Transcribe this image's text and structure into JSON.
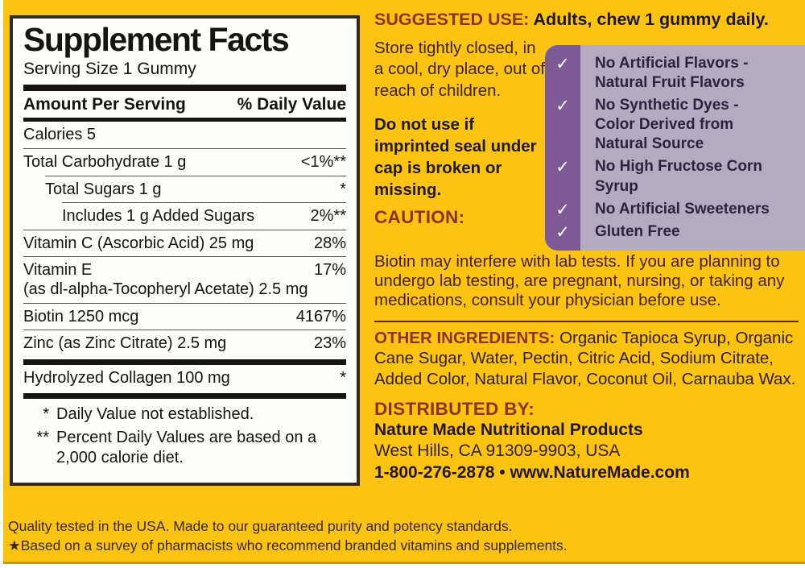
{
  "colors": {
    "background_yellow": "#fcc412",
    "heading_maroon": "#8a3520",
    "purple_strip": "#7d5a96",
    "purple_panel": "#b4aac1",
    "checklist_text": "#2b2340"
  },
  "facts": {
    "title": "Supplement Facts",
    "serving_size": "Serving Size 1 Gummy",
    "amount_header": "Amount Per Serving",
    "dv_header": "% Daily Value",
    "rows": [
      {
        "name": "Calories 5",
        "dv": ""
      },
      {
        "name": "Total Carbohydrate 1 g",
        "dv": "<1%**"
      },
      {
        "name": "Total Sugars 1 g",
        "dv": "*"
      },
      {
        "name": "Includes 1 g Added Sugars",
        "dv": "2%**"
      },
      {
        "name": "Vitamin C (Ascorbic Acid) 25 mg",
        "dv": "28%"
      },
      {
        "name": "Vitamin E",
        "name_line2": "(as dl-alpha-Tocopheryl Acetate) 2.5 mg",
        "dv": "17%"
      },
      {
        "name": "Biotin 1250 mcg",
        "dv": "4167%"
      },
      {
        "name": "Zinc (as Zinc Citrate) 2.5 mg",
        "dv": "23%"
      },
      {
        "name": "Hydrolyzed Collagen 100 mg",
        "dv": "*"
      }
    ],
    "footnotes": [
      {
        "marker": "*",
        "text": "Daily Value not established."
      },
      {
        "marker": "**",
        "text": "Percent Daily Values are based on a 2,000 calorie diet."
      }
    ]
  },
  "right": {
    "suggested_use_label": "SUGGESTED USE:",
    "suggested_use_text": "Adults, chew 1 gummy daily.",
    "storage_text": "Store tightly closed, in a cool, dry place, out of reach of children.",
    "seal_text": "Do not use if imprinted seal under cap is broken or missing.",
    "checkmark": "✓",
    "checklist": [
      {
        "lines": [
          "No Artificial Flavors -",
          "Natural Fruit Flavors"
        ]
      },
      {
        "lines": [
          "No Synthetic Dyes -",
          "Color Derived from",
          "Natural Source"
        ]
      },
      {
        "lines": [
          "No High Fructose Corn Syrup"
        ]
      },
      {
        "lines": [
          "No Artificial Sweeteners"
        ]
      },
      {
        "lines": [
          "Gluten Free"
        ]
      }
    ],
    "caution_label": "CAUTION:",
    "caution_text": "Biotin may interfere with lab tests. If you are planning to undergo lab testing, are pregnant, nursing, or taking any medications, consult your physician before use.",
    "other_ingredients_label": "OTHER INGREDIENTS:",
    "other_ingredients_text": " Organic Tapioca Syrup, Organic Cane Sugar, Water, Pectin, Citric Acid, Sodium Citrate, Added Color, Natural Flavor, Coconut Oil, Carnauba Wax.",
    "distributed_by_label": "DISTRIBUTED BY:",
    "distributor_name": "Nature Made Nutritional Products",
    "distributor_address": "West Hills, CA 91309-9903, USA",
    "contact_line": "1-800-276-2878 • www.NatureMade.com"
  },
  "footer": {
    "line1": "Quality tested in the USA. Made to our guaranteed purity and potency standards.",
    "line2": "★Based on a survey of pharmacists who recommend branded vitamins and supplements."
  }
}
